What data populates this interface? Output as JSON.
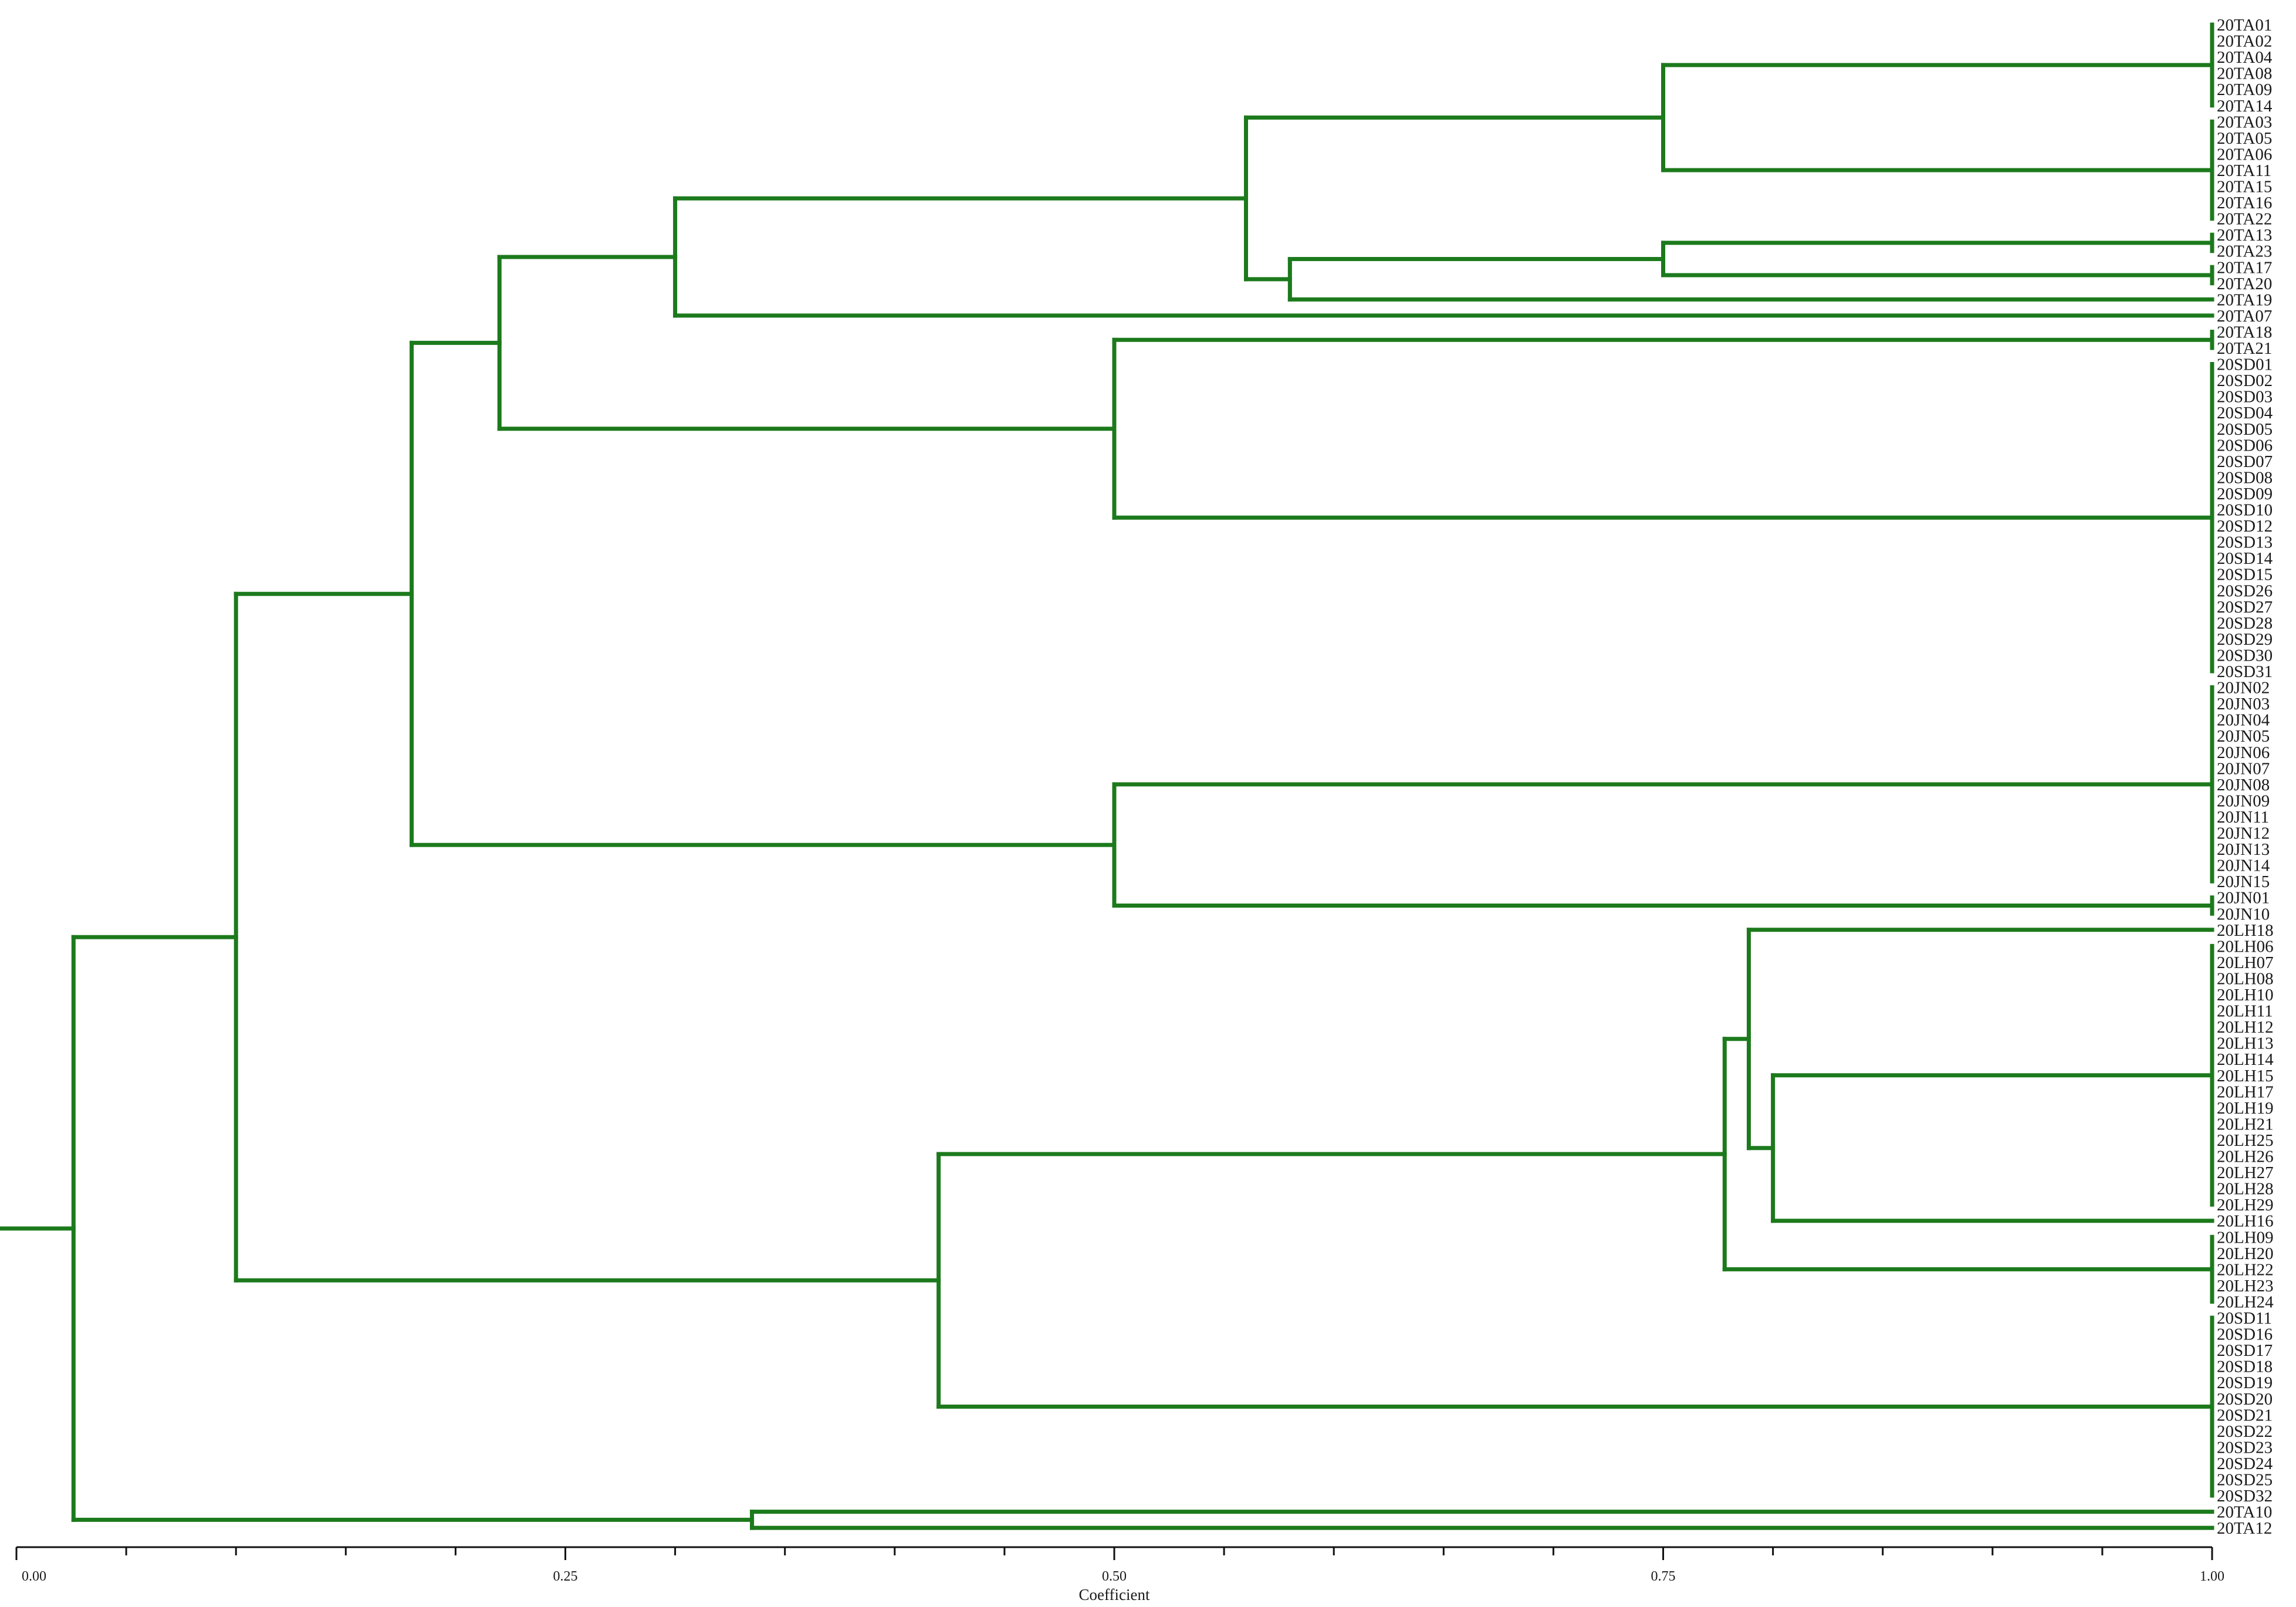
{
  "chart_data": {
    "type": "dendrogram",
    "xlabel": "Coefficient",
    "xlim": [
      0,
      1
    ],
    "major_ticks": [
      0,
      0.25,
      0.5,
      0.75,
      1
    ],
    "tick_labels": [
      "0.00",
      "0.25",
      "0.50",
      "0.75",
      "1.00"
    ],
    "minor_tick_step": 0.05,
    "line_color": "#1c7a1c",
    "leaves": [
      "20TA01",
      "20TA02",
      "20TA04",
      "20TA08",
      "20TA09",
      "20TA14",
      "20TA03",
      "20TA05",
      "20TA06",
      "20TA11",
      "20TA15",
      "20TA16",
      "20TA22",
      "20TA13",
      "20TA23",
      "20TA17",
      "20TA20",
      "20TA19",
      "20TA07",
      "20TA18",
      "20TA21",
      "20SD01",
      "20SD02",
      "20SD03",
      "20SD04",
      "20SD05",
      "20SD06",
      "20SD07",
      "20SD08",
      "20SD09",
      "20SD10",
      "20SD12",
      "20SD13",
      "20SD14",
      "20SD15",
      "20SD26",
      "20SD27",
      "20SD28",
      "20SD29",
      "20SD30",
      "20SD31",
      "20JN02",
      "20JN03",
      "20JN04",
      "20JN05",
      "20JN06",
      "20JN07",
      "20JN08",
      "20JN09",
      "20JN11",
      "20JN12",
      "20JN13",
      "20JN14",
      "20JN15",
      "20JN01",
      "20JN10",
      "20LH18",
      "20LH06",
      "20LH07",
      "20LH08",
      "20LH10",
      "20LH11",
      "20LH12",
      "20LH13",
      "20LH14",
      "20LH15",
      "20LH17",
      "20LH19",
      "20LH21",
      "20LH25",
      "20LH26",
      "20LH27",
      "20LH28",
      "20LH29",
      "20LH16",
      "20LH09",
      "20LH20",
      "20LH22",
      "20LH23",
      "20LH24",
      "20SD11",
      "20SD16",
      "20SD17",
      "20SD18",
      "20SD19",
      "20SD20",
      "20SD21",
      "20SD22",
      "20SD23",
      "20SD24",
      "20SD25",
      "20SD32",
      "20TA10",
      "20TA12"
    ],
    "merges": [
      {
        "id": "m1",
        "children": [
          [
            0,
            5
          ]
        ],
        "height": 1.0
      },
      {
        "id": "m2",
        "children": [
          [
            6,
            12
          ]
        ],
        "height": 1.0
      },
      {
        "id": "m3",
        "children": [
          13,
          14
        ],
        "height": 1.0
      },
      {
        "id": "m4",
        "children": [
          15,
          16
        ],
        "height": 1.0
      },
      {
        "id": "m5",
        "children": [
          [
            19,
            20
          ]
        ],
        "height": 1.0
      },
      {
        "id": "m6",
        "children": [
          [
            21,
            40
          ]
        ],
        "height": 1.0
      },
      {
        "id": "m7",
        "children": [
          [
            41,
            53
          ]
        ],
        "height": 1.0
      },
      {
        "id": "m8",
        "children": [
          54,
          55
        ],
        "height": 1.0
      },
      {
        "id": "m9",
        "children": [
          [
            57,
            73
          ]
        ],
        "height": 1.0
      },
      {
        "id": "m10",
        "children": [
          [
            75,
            79
          ]
        ],
        "height": 1.0
      },
      {
        "id": "m11",
        "children": [
          [
            80,
            91
          ]
        ],
        "height": 1.0
      },
      {
        "id": "c1",
        "children": [
          "m1",
          "m2"
        ],
        "height": 0.75
      },
      {
        "id": "c2",
        "children": [
          "m3",
          "m4"
        ],
        "height": 0.75
      },
      {
        "id": "c3",
        "children": [
          "c2",
          17
        ],
        "height": 0.58
      },
      {
        "id": "c4",
        "children": [
          "c1",
          "c3"
        ],
        "height": 0.56
      },
      {
        "id": "c5",
        "children": [
          "c4",
          18
        ],
        "height": 0.3
      },
      {
        "id": "c6",
        "children": [
          "m5",
          "m6"
        ],
        "height": 0.5
      },
      {
        "id": "c7",
        "children": [
          "c5",
          "c6"
        ],
        "height": 0.22
      },
      {
        "id": "c8",
        "children": [
          "m7",
          "m8"
        ],
        "height": 0.5
      },
      {
        "id": "c9",
        "children": [
          "c7",
          "c8"
        ],
        "height": 0.18
      },
      {
        "id": "c10",
        "children": [
          "m9",
          74
        ],
        "height": 0.8
      },
      {
        "id": "c11",
        "children": [
          56,
          "c10"
        ],
        "height": 0.789
      },
      {
        "id": "c12",
        "children": [
          "c11",
          "m10"
        ],
        "height": 0.778
      },
      {
        "id": "c13",
        "children": [
          "c12",
          "m11"
        ],
        "height": 0.42
      },
      {
        "id": "c14",
        "children": [
          "c9",
          "c13"
        ],
        "height": 0.1
      },
      {
        "id": "c15",
        "children": [
          92,
          93
        ],
        "height": 0.335
      },
      {
        "id": "root",
        "children": [
          "c14",
          "c15"
        ],
        "height": 0.026
      }
    ]
  }
}
